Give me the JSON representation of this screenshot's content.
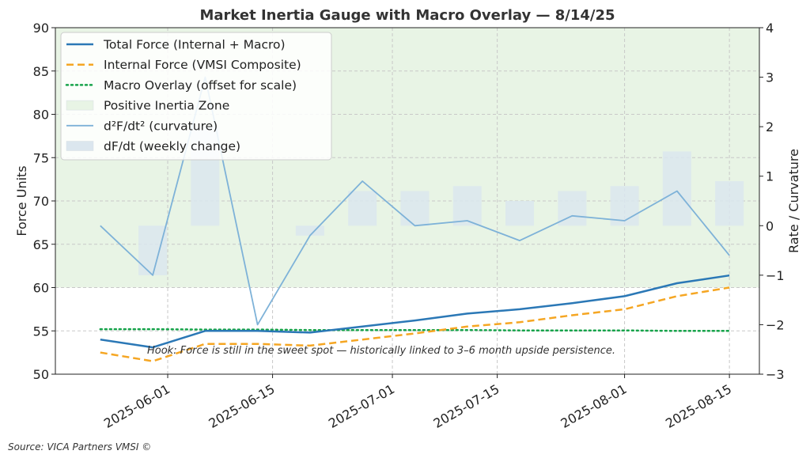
{
  "chart_data": {
    "type": "line",
    "title": "Market Inertia Gauge with Macro Overlay — 8/14/25",
    "ylabel": "Force Units",
    "y2label": "Rate / Curvature",
    "xlabel": "",
    "ylim": [
      50,
      90
    ],
    "y2lim": [
      -3,
      4
    ],
    "yticks": [
      "50",
      "55",
      "60",
      "65",
      "70",
      "75",
      "80",
      "85",
      "90"
    ],
    "y2ticks": [
      "−3",
      "−2",
      "−1",
      "0",
      "1",
      "2",
      "3",
      "4"
    ],
    "x_tick_labels": [
      "2025-06-01",
      "2025-06-15",
      "2025-07-01",
      "2025-07-15",
      "2025-08-01",
      "2025-08-15"
    ],
    "x_tick_dates": [
      "2025-06-01",
      "2025-06-15",
      "2025-07-01",
      "2025-07-15",
      "2025-08-01",
      "2025-08-15"
    ],
    "xlim": [
      "2025-05-17",
      "2025-08-19"
    ],
    "x": [
      "2025-05-23",
      "2025-05-30",
      "2025-06-06",
      "2025-06-13",
      "2025-06-20",
      "2025-06-27",
      "2025-07-04",
      "2025-07-11",
      "2025-07-18",
      "2025-07-25",
      "2025-08-01",
      "2025-08-08",
      "2025-08-15"
    ],
    "grid": true,
    "legend_position": "top-left",
    "positive_zone": {
      "label": "Positive Inertia Zone",
      "y_range": [
        60,
        90
      ],
      "color": "#e8f4e5"
    },
    "series": [
      {
        "name": "Total Force (Internal + Macro)",
        "axis": "left",
        "style": "solid",
        "color": "#2b78b6",
        "values": [
          54.0,
          53.1,
          55.0,
          55.0,
          54.8,
          55.5,
          56.2,
          57.0,
          57.5,
          58.2,
          59.0,
          60.5,
          61.4
        ]
      },
      {
        "name": "Internal Force (VMSI Composite)",
        "axis": "left",
        "style": "dashed",
        "color": "#f5a623",
        "values": [
          52.5,
          51.5,
          53.5,
          53.5,
          53.3,
          54.0,
          54.7,
          55.5,
          56.0,
          56.8,
          57.5,
          59.0,
          60.0
        ]
      },
      {
        "name": "Macro Overlay (offset for scale)",
        "axis": "left",
        "style": "dotted",
        "color": "#16a34a",
        "values": [
          55.2,
          55.2,
          55.15,
          55.15,
          55.1,
          55.1,
          55.1,
          55.1,
          55.05,
          55.05,
          55.05,
          55.0,
          55.0
        ]
      },
      {
        "name": "d²F/dt² (curvature)",
        "axis": "right",
        "style": "thin",
        "color": "#7eb2d8",
        "values": [
          0.0,
          -1.0,
          3.0,
          -2.0,
          -0.2,
          0.9,
          0.0,
          0.1,
          -0.3,
          0.2,
          0.1,
          0.7,
          -0.6
        ]
      },
      {
        "name": "dF/dt (weekly change)",
        "axis": "right",
        "style": "bar",
        "color": "#dbe6ee",
        "values": [
          null,
          -1.0,
          2.0,
          0.0,
          -0.2,
          0.7,
          0.7,
          0.8,
          0.5,
          0.7,
          0.8,
          1.5,
          0.9
        ]
      }
    ],
    "annotation": "Hook: Force is still in the sweet spot — historically linked to 3–6 month upside persistence.",
    "source": "Source: VICA Partners VMSI ©"
  }
}
